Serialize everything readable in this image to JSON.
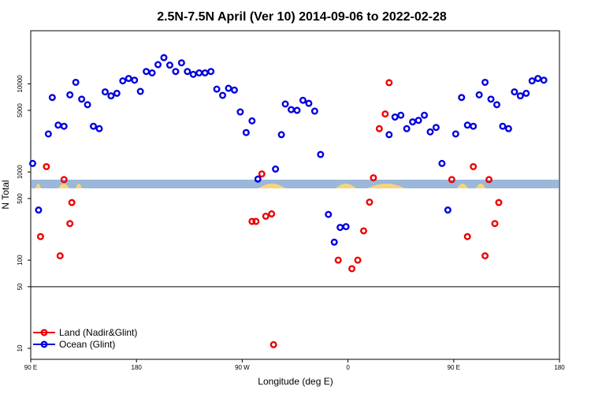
{
  "chart_data": {
    "type": "scatter",
    "title": "2.5N-7.5N April (Ver 10)   2014-09-06 to 2022-02-28",
    "xlabel": "Longitude (deg E)",
    "ylabel": "N Total",
    "y_scale": "log",
    "xlim": [
      90,
      360
    ],
    "ylim": [
      7.5,
      40000
    ],
    "x_ticks": [
      {
        "value": 90,
        "label": "90 E"
      },
      {
        "value": 144,
        "label": "180"
      },
      {
        "value": 198,
        "label": "90 W"
      },
      {
        "value": 252,
        "label": "0"
      },
      {
        "value": 306,
        "label": "90 E"
      },
      {
        "value": 360,
        "label": "180"
      }
    ],
    "y_ticks": [
      {
        "value": 10,
        "label": "10"
      },
      {
        "value": 50,
        "label": "50"
      },
      {
        "value": 100,
        "label": "100"
      },
      {
        "value": 500,
        "label": "500"
      },
      {
        "value": 1000,
        "label": "1000"
      },
      {
        "value": 5000,
        "label": "5000"
      },
      {
        "value": 10000,
        "label": "10000"
      }
    ],
    "reference_line": 50,
    "map_strip": {
      "colors": {
        "ocean": "#9bb7da",
        "land": "#f5d47a"
      }
    },
    "legend_position": "bottom-left",
    "series": [
      {
        "name": "Land (Nadir&Glint)",
        "color": "#ee0000",
        "points": [
          [
            95,
            185
          ],
          [
            98,
            1150
          ],
          [
            105,
            112
          ],
          [
            107,
            820
          ],
          [
            110,
            260
          ],
          [
            111,
            450
          ],
          [
            203,
            275
          ],
          [
            205,
            275
          ],
          [
            208,
            950
          ],
          [
            210,
            315
          ],
          [
            213,
            335
          ],
          [
            214,
            11
          ],
          [
            247,
            100
          ],
          [
            254,
            80
          ],
          [
            257,
            100
          ],
          [
            260,
            215
          ],
          [
            263,
            455
          ],
          [
            265,
            860
          ],
          [
            268,
            3100
          ],
          [
            271,
            4550
          ],
          [
            273,
            10300
          ],
          [
            305,
            820
          ],
          [
            313,
            185
          ],
          [
            316,
            1150
          ],
          [
            322,
            112
          ],
          [
            324,
            820
          ],
          [
            327,
            260
          ],
          [
            329,
            450
          ]
        ]
      },
      {
        "name": "Ocean (Glint)",
        "color": "#0000dd",
        "points": [
          [
            91,
            1250
          ],
          [
            94,
            370
          ],
          [
            99,
            2700
          ],
          [
            101,
            7000
          ],
          [
            104,
            3400
          ],
          [
            107,
            3300
          ],
          [
            110,
            7500
          ],
          [
            113,
            10400
          ],
          [
            116,
            6700
          ],
          [
            119,
            5800
          ],
          [
            122,
            3300
          ],
          [
            125,
            3100
          ],
          [
            128,
            8100
          ],
          [
            131,
            7300
          ],
          [
            134,
            7800
          ],
          [
            137,
            10800
          ],
          [
            140,
            11500
          ],
          [
            143,
            11000
          ],
          [
            146,
            8200
          ],
          [
            149,
            13800
          ],
          [
            152,
            13300
          ],
          [
            155,
            16500
          ],
          [
            158,
            19800
          ],
          [
            161,
            16300
          ],
          [
            164,
            13800
          ],
          [
            167,
            17300
          ],
          [
            170,
            13800
          ],
          [
            173,
            12800
          ],
          [
            176,
            13300
          ],
          [
            179,
            13300
          ],
          [
            182,
            13800
          ],
          [
            185,
            8700
          ],
          [
            188,
            7400
          ],
          [
            191,
            8900
          ],
          [
            194,
            8500
          ],
          [
            197,
            4800
          ],
          [
            200,
            2800
          ],
          [
            203,
            3800
          ],
          [
            206,
            830
          ],
          [
            215,
            1080
          ],
          [
            218,
            2650
          ],
          [
            220,
            5900
          ],
          [
            223,
            5100
          ],
          [
            226,
            5000
          ],
          [
            229,
            6500
          ],
          [
            232,
            6000
          ],
          [
            235,
            4900
          ],
          [
            238,
            1580
          ],
          [
            242,
            330
          ],
          [
            245,
            160
          ],
          [
            248,
            235
          ],
          [
            251,
            240
          ],
          [
            273,
            2650
          ],
          [
            276,
            4200
          ],
          [
            279,
            4400
          ],
          [
            282,
            3100
          ],
          [
            285,
            3700
          ],
          [
            288,
            3850
          ],
          [
            291,
            4400
          ],
          [
            294,
            2850
          ],
          [
            297,
            3200
          ],
          [
            300,
            1250
          ],
          [
            303,
            370
          ],
          [
            307,
            2700
          ],
          [
            310,
            7000
          ],
          [
            313,
            3400
          ],
          [
            316,
            3300
          ],
          [
            319,
            7500
          ],
          [
            322,
            10400
          ],
          [
            325,
            6700
          ],
          [
            328,
            5800
          ],
          [
            331,
            3300
          ],
          [
            334,
            3100
          ],
          [
            337,
            8100
          ],
          [
            340,
            7300
          ],
          [
            343,
            7800
          ],
          [
            346,
            10800
          ],
          [
            349,
            11500
          ],
          [
            352,
            11000
          ]
        ]
      }
    ]
  }
}
